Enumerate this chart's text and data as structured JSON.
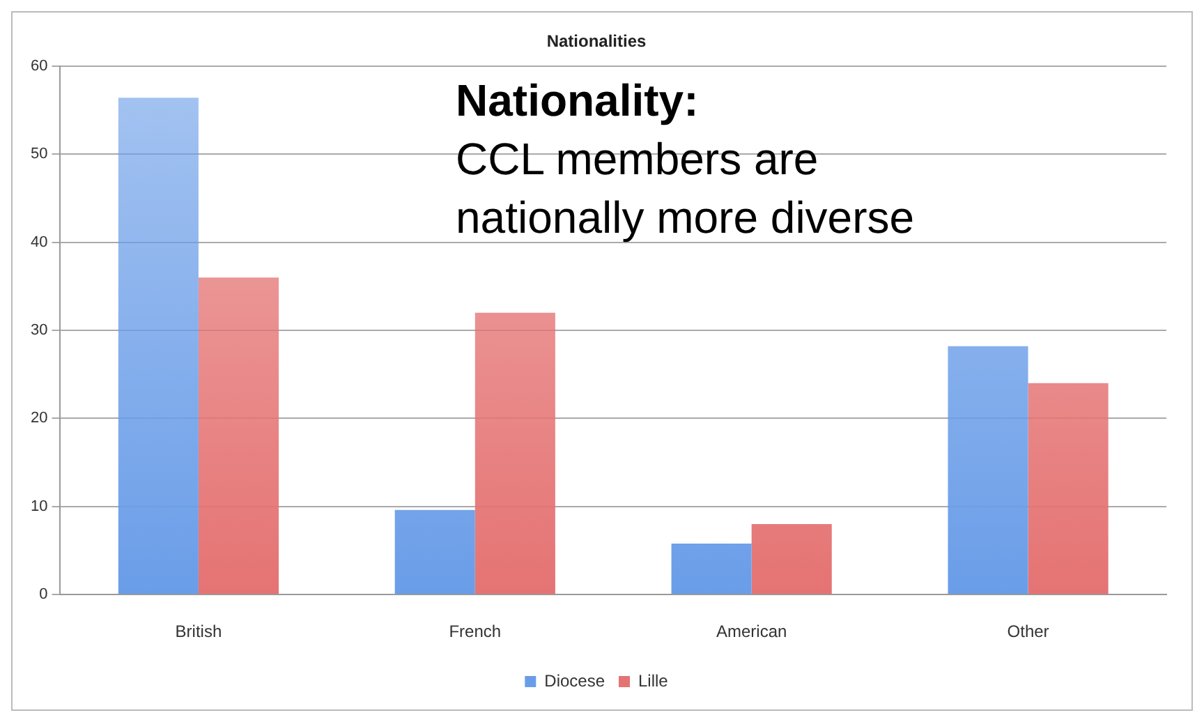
{
  "chart_data": {
    "type": "bar",
    "title": "Nationalities",
    "categories": [
      "British",
      "French",
      "American",
      "Other"
    ],
    "series": [
      {
        "name": "Diocese",
        "color": "#6a9de8",
        "values": [
          56.4,
          9.6,
          5.8,
          28.2
        ]
      },
      {
        "name": "Lille",
        "color": "#e57373",
        "values": [
          36,
          32,
          8,
          24
        ]
      }
    ],
    "ylim": [
      0,
      60
    ],
    "yticks": [
      0,
      10,
      20,
      30,
      40,
      50,
      60
    ],
    "grid": "y",
    "legend": "bottom",
    "annotations": [
      "Nationality:",
      "CCL members are nationally more diverse"
    ]
  }
}
